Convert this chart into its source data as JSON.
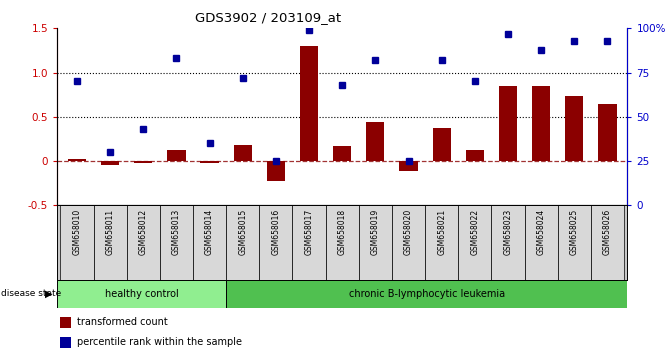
{
  "title": "GDS3902 / 203109_at",
  "samples": [
    "GSM658010",
    "GSM658011",
    "GSM658012",
    "GSM658013",
    "GSM658014",
    "GSM658015",
    "GSM658016",
    "GSM658017",
    "GSM658018",
    "GSM658019",
    "GSM658020",
    "GSM658021",
    "GSM658022",
    "GSM658023",
    "GSM658024",
    "GSM658025",
    "GSM658026"
  ],
  "transformed_count": [
    0.02,
    -0.05,
    -0.02,
    0.12,
    -0.02,
    0.18,
    -0.22,
    1.3,
    0.17,
    0.44,
    -0.11,
    0.37,
    0.13,
    0.85,
    0.85,
    0.73,
    0.65
  ],
  "percentile_rank": [
    70,
    30,
    43,
    83,
    35,
    72,
    25,
    99,
    68,
    82,
    25,
    82,
    70,
    97,
    88,
    93,
    93
  ],
  "healthy_control_count": 5,
  "group_labels": [
    "healthy control",
    "chronic B-lymphocytic leukemia"
  ],
  "healthy_color": "#90EE90",
  "leukemia_color": "#50C050",
  "bar_color": "#8B0000",
  "dot_color": "#000099",
  "ylim_left": [
    -0.5,
    1.5
  ],
  "ylim_right": [
    0,
    100
  ],
  "yticks_left": [
    -0.5,
    0.0,
    0.5,
    1.0,
    1.5
  ],
  "yticks_right": [
    0,
    25,
    50,
    75,
    100
  ],
  "hlines": [
    0.5,
    1.0
  ],
  "zero_line": 0.0,
  "legend_items": [
    "transformed count",
    "percentile rank within the sample"
  ],
  "bg_color": "#FFFFFF",
  "tick_label_color_left": "#CC0000",
  "tick_label_color_right": "#0000CC",
  "disease_state_label": "disease state"
}
